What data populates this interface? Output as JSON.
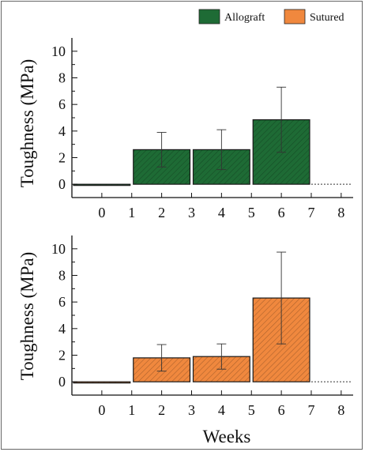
{
  "legend": [
    {
      "label": "Allograft",
      "color": "#1e6b35"
    },
    {
      "label": "Sutured",
      "color": "#f0883e"
    }
  ],
  "chart_data": [
    {
      "type": "bar",
      "series": [
        {
          "name": "Allograft",
          "color": "#1e6b35"
        }
      ],
      "bars": [
        {
          "x0": -1,
          "x1": 1,
          "value": 0.0,
          "err": 0.0
        },
        {
          "x0": 1,
          "x1": 3,
          "value": 2.6,
          "err": 1.3
        },
        {
          "x0": 3,
          "x1": 5,
          "value": 2.6,
          "err": 1.5
        },
        {
          "x0": 5,
          "x1": 7,
          "value": 4.85,
          "err": 2.45
        }
      ],
      "ylabel": "Toughness (MPa)",
      "xlim": [
        -1,
        8.4
      ],
      "ylim": [
        -1,
        11
      ],
      "xticks": [
        0,
        1,
        2,
        3,
        4,
        5,
        6,
        7,
        8
      ],
      "yticks": [
        0,
        2,
        4,
        6,
        8,
        10
      ]
    },
    {
      "type": "bar",
      "series": [
        {
          "name": "Sutured",
          "color": "#f0883e"
        }
      ],
      "bars": [
        {
          "x0": -1,
          "x1": 1,
          "value": 0.0,
          "err": 0.0
        },
        {
          "x0": 1,
          "x1": 3,
          "value": 1.8,
          "err": 1.0
        },
        {
          "x0": 3,
          "x1": 5,
          "value": 1.9,
          "err": 0.95
        },
        {
          "x0": 5,
          "x1": 7,
          "value": 6.3,
          "err": 3.45
        }
      ],
      "ylabel": "Toughness (MPa)",
      "xlabel": "Weeks",
      "xlim": [
        -1,
        8.4
      ],
      "ylim": [
        -1,
        11
      ],
      "xticks": [
        0,
        1,
        2,
        3,
        4,
        5,
        6,
        7,
        8
      ],
      "yticks": [
        0,
        2,
        4,
        6,
        8,
        10
      ]
    }
  ]
}
